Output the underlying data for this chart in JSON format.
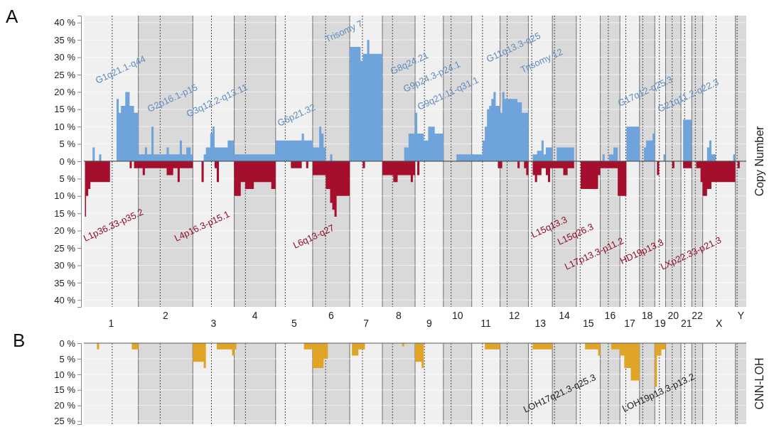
{
  "chart_data": [
    {
      "type": "area",
      "title": "A",
      "ylabel": "Copy Number",
      "ylim": [
        0,
        42
      ],
      "grid": "y",
      "tick_labels": "y",
      "categories": [
        null,
        null,
        null,
        null,
        null,
        null,
        null,
        null,
        null,
        null,
        null,
        null,
        null,
        null,
        null,
        null,
        null,
        null,
        null,
        null,
        null,
        null,
        null,
        null,
        null,
        null,
        null,
        null,
        null,
        null,
        null,
        null,
        null,
        null,
        null,
        null,
        null,
        null,
        null,
        null,
        null,
        null,
        null,
        null,
        null,
        null,
        null,
        null,
        null,
        null,
        null,
        null,
        null,
        null,
        null,
        null,
        null,
        null,
        null,
        null,
        null,
        null,
        null,
        null,
        null,
        null,
        null,
        null,
        null,
        null,
        null,
        null,
        null,
        null,
        null,
        null,
        null,
        null,
        null,
        null,
        null,
        null,
        null,
        null,
        null,
        null,
        null,
        null,
        null,
        null,
        null,
        null,
        null,
        null,
        null,
        null,
        null,
        null,
        null,
        null,
        null,
        null,
        null,
        null,
        null,
        null,
        null,
        null,
        null,
        null,
        null,
        null,
        null,
        null,
        null,
        null,
        null,
        null,
        null,
        null,
        null,
        null,
        null,
        null,
        null,
        null,
        null,
        null,
        null,
        null,
        null,
        null,
        null,
        null,
        null,
        null,
        null,
        null,
        null,
        null,
        null,
        null,
        null,
        null,
        null,
        null,
        null,
        null,
        null,
        null,
        null,
        null,
        null,
        null,
        null,
        null,
        null,
        null,
        null,
        null,
        null,
        null,
        null,
        null,
        null,
        null,
        null,
        null,
        null,
        null,
        null,
        null,
        null,
        null,
        null,
        null,
        null,
        null,
        null,
        null,
        null,
        null,
        null,
        null,
        null,
        null,
        null,
        null,
        null,
        null,
        null,
        null,
        null,
        null,
        null,
        null,
        null,
        null,
        null,
        null,
        null,
        null,
        null,
        null,
        null,
        null,
        null,
        null,
        null,
        null,
        null,
        null,
        null,
        null,
        null,
        null,
        null,
        null,
        null,
        null,
        null,
        null,
        null,
        null,
        null,
        null,
        null,
        null,
        null,
        null,
        null,
        null,
        null,
        null,
        null,
        null,
        null,
        null,
        null,
        null,
        null,
        null,
        null,
        null,
        null,
        null,
        null,
        null,
        null,
        null,
        null,
        null,
        null,
        null,
        null,
        null,
        null,
        null,
        null,
        null,
        null,
        null,
        null,
        null,
        null,
        null,
        null,
        null,
        null,
        null,
        null,
        null,
        null,
        null,
        null,
        null,
        null,
        null,
        null,
        null,
        null,
        null,
        null,
        null,
        null,
        null,
        null,
        null,
        null,
        null,
        null,
        null,
        null,
        null,
        null,
        null,
        null,
        null,
        null,
        null,
        null,
        null,
        null,
        null
      ],
      "yticks": [
        {
          "value": 0,
          "label": "0 %"
        },
        {
          "value": 5,
          "label": "5 %"
        },
        {
          "value": 10,
          "label": "10 %"
        },
        {
          "value": 15,
          "label": "15 %"
        },
        {
          "value": 20,
          "label": "20 %"
        },
        {
          "value": 25,
          "label": "25 %"
        },
        {
          "value": 30,
          "label": "30 %"
        },
        {
          "value": 35,
          "label": "35 %"
        },
        {
          "value": 40,
          "label": "40 %"
        }
      ],
      "series": [
        {
          "color": "#6fa3dc",
          "values": [
            0,
            0,
            0,
            0,
            4,
            0,
            0,
            2,
            0,
            0,
            0,
            0,
            0,
            0,
            0,
            18,
            14,
            16,
            16,
            20,
            20,
            16,
            16,
            14,
            14,
            2,
            2,
            2,
            4,
            2,
            2,
            10,
            2,
            2,
            2,
            2,
            2,
            2,
            4,
            2,
            2,
            2,
            2,
            2,
            6,
            2,
            2,
            4,
            4,
            2,
            0,
            0,
            0,
            0,
            0,
            2,
            4,
            4,
            8,
            10,
            4,
            4,
            4,
            4,
            4,
            4,
            6,
            6,
            6,
            2,
            2,
            2,
            2,
            2,
            2,
            2,
            2,
            2,
            2,
            2,
            2,
            2,
            2,
            2,
            2,
            2,
            2,
            2,
            6,
            6,
            6,
            6,
            6,
            6,
            6,
            6,
            6,
            6,
            6,
            6,
            8,
            6,
            6,
            6,
            6,
            4,
            4,
            4,
            10,
            8,
            4,
            0,
            0,
            2,
            0,
            0,
            0,
            0,
            0,
            0,
            0,
            0,
            33,
            33,
            33,
            33,
            33,
            29,
            31,
            31,
            35,
            31,
            31,
            31,
            31,
            31,
            31,
            0,
            0,
            0,
            0,
            0,
            0,
            0,
            0,
            0,
            0,
            4,
            4,
            8,
            8,
            8,
            14,
            8,
            8,
            8,
            6,
            6,
            10,
            10,
            10,
            8,
            8,
            8,
            8,
            0,
            0,
            0,
            0,
            0,
            0,
            2,
            2,
            2,
            2,
            2,
            2,
            2,
            2,
            2,
            2,
            2,
            2,
            6,
            10,
            15,
            16,
            18,
            20,
            16,
            16,
            14,
            20,
            18,
            18,
            18,
            18,
            18,
            18,
            17,
            17,
            14,
            14,
            14,
            0,
            0,
            2,
            2,
            3,
            3,
            6,
            2,
            4,
            4,
            4,
            0,
            0,
            4,
            4,
            4,
            4,
            4,
            4,
            4,
            4,
            0,
            0,
            0,
            0,
            0,
            0,
            0,
            0,
            0,
            0,
            0,
            0,
            0,
            2,
            0,
            0,
            2,
            2,
            4,
            4,
            0,
            0,
            0,
            0,
            10,
            10,
            10,
            10,
            10,
            10,
            0,
            0,
            4,
            6,
            6,
            6,
            8,
            0,
            0,
            0,
            0,
            2,
            0,
            0,
            0,
            0,
            0,
            0,
            0,
            0,
            12,
            12,
            12,
            12,
            0,
            0,
            0,
            0,
            0,
            0,
            0,
            4,
            6,
            2,
            2,
            0,
            0,
            0,
            0,
            0,
            0,
            0,
            0,
            2,
            0,
            0,
            0,
            0,
            0
          ]
        }
      ],
      "annotations": [
        "G1q21.1-q44",
        "G2p16.1-p15",
        "G3q12.2-q13.11",
        "G6p21.32",
        "Trisomy 7",
        "G8q24.21",
        "G9p24.3-p24.1",
        "G9q21.11-q31.1",
        "G11q13.3-q25",
        "Trisomy 12",
        "G17q12-q25.3",
        "G21q11.2-q22.3"
      ]
    },
    {
      "type": "area",
      "ylim": [
        42,
        0
      ],
      "grid": "y",
      "categories": [
        null,
        null,
        null,
        null,
        null,
        null,
        null,
        null,
        null,
        null,
        null,
        null,
        "1",
        null,
        null,
        null,
        null,
        null,
        null,
        null,
        null,
        null,
        null,
        null,
        null,
        null,
        null,
        null,
        null,
        null,
        null,
        null,
        null,
        null,
        null,
        null,
        null,
        "2",
        null,
        null,
        null,
        null,
        null,
        null,
        null,
        null,
        null,
        null,
        null,
        null,
        null,
        null,
        null,
        null,
        null,
        null,
        null,
        null,
        null,
        "3",
        null,
        null,
        null,
        null,
        null,
        null,
        null,
        null,
        null,
        null,
        null,
        null,
        null,
        null,
        null,
        null,
        null,
        null,
        "4",
        null,
        null,
        null,
        null,
        null,
        null,
        null,
        null,
        null,
        null,
        null,
        null,
        null,
        null,
        null,
        null,
        null,
        "5",
        null,
        null,
        null,
        null,
        null,
        null,
        null,
        null,
        null,
        null,
        null,
        null,
        null,
        null,
        null,
        null,
        "6",
        null,
        null,
        null,
        null,
        null,
        null,
        null,
        null,
        null,
        null,
        null,
        null,
        null,
        null,
        null,
        "7",
        null,
        null,
        null,
        null,
        null,
        null,
        null,
        null,
        null,
        null,
        null,
        null,
        null,
        null,
        "8",
        null,
        null,
        null,
        null,
        null,
        null,
        null,
        null,
        null,
        null,
        null,
        null,
        null,
        "9",
        null,
        null,
        null,
        null,
        null,
        null,
        null,
        null,
        null,
        null,
        null,
        null,
        "10",
        null,
        null,
        null,
        null,
        null,
        null,
        null,
        null,
        null,
        null,
        null,
        null,
        "11",
        null,
        null,
        null,
        null,
        null,
        null,
        null,
        null,
        null,
        null,
        null,
        null,
        "12",
        null,
        null,
        null,
        null,
        null,
        null,
        null,
        null,
        null,
        null,
        null,
        "13",
        null,
        null,
        null,
        null,
        null,
        null,
        null,
        null,
        null,
        null,
        "14",
        null,
        null,
        null,
        null,
        null,
        null,
        null,
        null,
        null,
        null,
        "15",
        null,
        null,
        null,
        null,
        null,
        null,
        null,
        null,
        null,
        "16",
        null,
        null,
        null,
        null,
        null,
        null,
        null,
        null,
        "17",
        null,
        null,
        null,
        null,
        null,
        null,
        null,
        "18",
        null,
        null,
        null,
        null,
        null,
        "19",
        null,
        null,
        null,
        null,
        null,
        "20",
        null,
        null,
        null,
        null,
        null,
        "21",
        null,
        null,
        null,
        null,
        "22",
        null,
        null,
        null,
        null,
        null,
        null,
        null,
        null,
        null,
        "X",
        null,
        null,
        null,
        null,
        null,
        null,
        null,
        null,
        null,
        "Y",
        null,
        null
      ],
      "yticks": [
        {
          "value": 5,
          "label": "5 %"
        },
        {
          "value": 10,
          "label": "10 %"
        },
        {
          "value": 15,
          "label": "15 %"
        },
        {
          "value": 20,
          "label": "20 %"
        },
        {
          "value": 25,
          "label": "25 %"
        },
        {
          "value": 30,
          "label": "30 %"
        },
        {
          "value": 35,
          "label": "35 %"
        },
        {
          "value": 40,
          "label": "40 %"
        }
      ],
      "series": [
        {
          "color": "#a50f2d",
          "values": [
            16,
            10,
            8,
            6,
            6,
            6,
            6,
            6,
            6,
            6,
            6,
            6,
            0,
            0,
            0,
            0,
            0,
            0,
            0,
            0,
            0,
            2,
            0,
            2,
            2,
            2,
            2,
            4,
            2,
            2,
            2,
            2,
            2,
            2,
            2,
            2,
            2,
            2,
            4,
            4,
            4,
            2,
            2,
            6,
            2,
            2,
            2,
            2,
            2,
            2,
            0,
            0,
            0,
            0,
            6,
            0,
            0,
            0,
            0,
            0,
            2,
            6,
            0,
            0,
            0,
            0,
            0,
            0,
            0,
            10,
            10,
            10,
            6,
            6,
            8,
            8,
            8,
            8,
            6,
            6,
            6,
            6,
            6,
            6,
            6,
            6,
            8,
            8,
            0,
            0,
            0,
            0,
            0,
            0,
            0,
            2,
            2,
            2,
            2,
            2,
            0,
            0,
            2,
            0,
            0,
            4,
            4,
            4,
            4,
            4,
            4,
            8,
            8,
            12,
            14,
            16,
            10,
            10,
            10,
            10,
            10,
            10,
            0,
            0,
            0,
            0,
            0,
            0,
            2,
            0,
            0,
            0,
            0,
            0,
            0,
            0,
            0,
            4,
            4,
            4,
            4,
            4,
            6,
            6,
            4,
            4,
            4,
            4,
            4,
            4,
            6,
            4,
            0,
            4,
            0,
            0,
            0,
            0,
            0,
            0,
            0,
            0,
            0,
            0,
            0,
            0,
            0,
            0,
            0,
            0,
            0,
            0,
            0,
            0,
            0,
            0,
            0,
            0,
            0,
            0,
            0,
            0,
            0,
            0,
            0,
            0,
            0,
            0,
            0,
            0,
            2,
            2,
            0,
            0,
            0,
            0,
            0,
            0,
            0,
            2,
            0,
            0,
            2,
            4,
            0,
            0,
            4,
            6,
            4,
            4,
            2,
            2,
            4,
            6,
            2,
            2,
            2,
            2,
            2,
            2,
            4,
            4,
            2,
            2,
            2,
            0,
            0,
            0,
            8,
            8,
            8,
            8,
            8,
            8,
            8,
            8,
            4,
            2,
            2,
            2,
            2,
            2,
            2,
            2,
            2,
            10,
            10,
            10,
            10,
            0,
            0,
            0,
            0,
            0,
            0,
            0,
            0,
            0,
            0,
            0,
            0,
            0,
            0,
            4,
            0,
            0,
            0,
            0,
            0,
            0,
            2,
            0,
            0,
            0,
            0,
            2,
            2,
            2,
            2,
            0,
            0,
            2,
            2,
            6,
            10,
            10,
            8,
            8,
            6,
            6,
            6,
            6,
            6,
            6,
            6,
            6,
            6,
            6,
            6,
            0,
            2,
            0,
            0,
            0
          ]
        }
      ],
      "annotations": [
        "L1p36.33-p35.2",
        "L4p16.3-p15.1",
        "L6q13-q27",
        "L15q13.3",
        "L15q26.3",
        "L17p13.3-p11.2",
        "HD19p13.3",
        "LXp22.33-p21.3"
      ]
    },
    {
      "type": "area",
      "title": "B",
      "ylabel": "CNN-LOH",
      "ylim": [
        26,
        0
      ],
      "grid": "y",
      "tick_labels": "y",
      "categories": [
        null,
        null,
        null,
        null,
        null,
        null,
        null,
        null,
        null,
        null,
        null,
        null,
        null,
        null,
        null,
        null,
        null,
        null,
        null,
        null,
        null,
        null,
        null,
        null,
        null,
        null,
        null,
        null,
        null,
        null,
        null,
        null,
        null,
        null,
        null,
        null,
        null,
        null,
        null,
        null,
        null,
        null,
        null,
        null,
        null,
        null,
        null,
        null,
        null,
        null,
        null,
        null,
        null,
        null,
        null,
        null,
        null,
        null,
        null,
        null,
        null,
        null,
        null,
        null,
        null,
        null,
        null,
        null,
        null,
        null,
        null,
        null,
        null,
        null,
        null,
        null,
        null,
        null,
        null,
        null,
        null,
        null,
        null,
        null,
        null,
        null,
        null,
        null,
        null,
        null,
        null,
        null,
        null,
        null,
        null,
        null,
        null,
        null,
        null,
        null,
        null,
        null,
        null,
        null,
        null,
        null,
        null,
        null,
        null,
        null,
        null,
        null,
        null,
        null,
        null,
        null,
        null,
        null,
        null,
        null,
        null,
        null,
        null,
        null,
        null,
        null,
        null,
        null,
        null,
        null,
        null,
        null,
        null,
        null,
        null,
        null,
        null,
        null,
        null,
        null,
        null,
        null,
        null,
        null,
        null,
        null,
        null,
        null,
        null,
        null,
        null,
        null,
        null,
        null,
        null,
        null,
        null,
        null,
        null,
        null,
        null,
        null,
        null,
        null,
        null,
        null,
        null,
        null,
        null,
        null,
        null,
        null,
        null,
        null,
        null,
        null,
        null,
        null,
        null,
        null,
        null,
        null,
        null,
        null,
        null,
        null,
        null,
        null,
        null,
        null,
        null,
        null,
        null,
        null,
        null,
        null,
        null,
        null,
        null,
        null,
        null,
        null,
        null,
        null,
        null,
        null,
        null,
        null,
        null,
        null,
        null,
        null,
        null,
        null,
        null,
        null,
        null,
        null,
        null,
        null,
        null,
        null,
        null,
        null,
        null,
        null,
        null,
        null,
        null,
        null,
        null,
        null,
        null,
        null,
        null,
        null,
        null,
        null,
        null,
        null,
        null,
        null,
        null,
        null,
        null,
        null,
        null,
        null,
        null,
        null,
        null,
        null,
        null,
        null,
        null,
        null,
        null,
        null,
        null,
        null,
        null,
        null,
        null,
        null,
        null,
        null,
        null,
        null,
        null,
        null,
        null,
        null,
        null,
        null,
        null,
        null,
        null,
        null,
        null,
        null,
        null,
        null,
        null,
        null,
        null,
        null,
        null,
        null,
        null,
        null,
        null,
        null,
        null,
        null,
        null,
        null,
        null,
        null,
        null,
        null,
        null,
        null,
        null,
        null
      ],
      "yticks": [
        {
          "value": 0,
          "label": "0 %"
        },
        {
          "value": 5,
          "label": "5 %"
        },
        {
          "value": 10,
          "label": "10 %"
        },
        {
          "value": 15,
          "label": "15 %"
        },
        {
          "value": 20,
          "label": "20 %"
        },
        {
          "value": 25,
          "label": "25 %"
        }
      ],
      "series": [
        {
          "color": "#e0a526",
          "values": [
            0,
            0,
            0,
            0,
            0,
            0,
            2,
            0,
            0,
            0,
            0,
            0,
            0,
            0,
            0,
            0,
            0,
            0,
            0,
            0,
            0,
            0,
            2,
            2,
            2,
            0,
            0,
            0,
            0,
            0,
            0,
            0,
            0,
            0,
            0,
            0,
            0,
            0,
            0,
            0,
            0,
            0,
            0,
            0,
            0,
            0,
            0,
            0,
            0,
            0,
            6,
            6,
            6,
            6,
            6,
            8,
            0,
            0,
            0,
            0,
            0,
            2,
            2,
            2,
            2,
            2,
            2,
            2,
            4,
            2,
            0,
            0,
            0,
            0,
            0,
            0,
            0,
            0,
            0,
            0,
            0,
            0,
            0,
            0,
            0,
            0,
            0,
            0,
            0,
            0,
            0,
            0,
            0,
            0,
            0,
            0,
            0,
            0,
            0,
            0,
            0,
            2,
            2,
            2,
            2,
            8,
            8,
            8,
            8,
            8,
            5,
            5,
            0,
            0,
            0,
            0,
            0,
            0,
            0,
            0,
            0,
            0,
            0,
            4,
            4,
            4,
            2,
            2,
            2,
            0,
            0,
            0,
            0,
            0,
            0,
            0,
            0,
            0,
            0,
            0,
            0,
            0,
            0,
            0,
            0,
            0,
            1,
            0,
            0,
            0,
            0,
            0,
            6,
            6,
            6,
            8,
            0,
            0,
            0,
            0,
            0,
            0,
            0,
            0,
            0,
            0,
            0,
            0,
            0,
            0,
            0,
            0,
            0,
            0,
            0,
            0,
            0,
            0,
            0,
            0,
            0,
            0,
            0,
            0,
            2,
            2,
            2,
            2,
            2,
            2,
            2,
            0,
            0,
            0,
            0,
            0,
            0,
            0,
            0,
            0,
            0,
            0,
            0,
            0,
            0,
            0,
            2,
            2,
            2,
            2,
            2,
            2,
            2,
            2,
            2,
            0,
            0,
            0,
            0,
            0,
            0,
            0,
            0,
            0,
            0,
            0,
            0,
            0,
            0,
            0,
            2,
            2,
            2,
            2,
            2,
            2,
            4,
            0,
            0,
            0,
            0,
            0,
            2,
            2,
            2,
            2,
            4,
            4,
            8,
            8,
            8,
            12,
            12,
            12,
            12,
            0,
            0,
            0,
            0,
            0,
            0,
            0,
            14,
            4,
            4,
            2,
            2,
            0,
            0,
            0,
            0,
            0,
            0,
            0,
            0,
            0,
            0,
            0,
            0,
            0,
            0,
            0,
            0,
            0,
            0,
            0,
            0,
            0,
            0,
            0,
            0,
            0,
            0,
            0,
            0,
            0,
            0,
            0,
            0,
            0,
            0,
            0,
            0,
            0
          ]
        }
      ],
      "annotations": [
        "LOH17q21.3-q25.3",
        "LOH19p13.3-p13.2"
      ]
    }
  ]
}
